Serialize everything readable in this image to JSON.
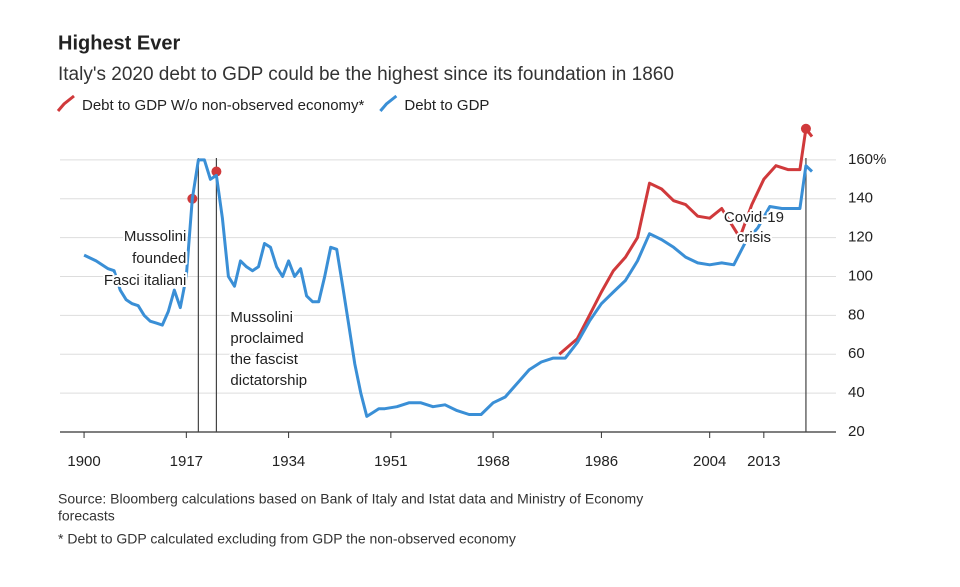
{
  "chart_data": {
    "type": "line",
    "title": "Highest Ever",
    "subtitle": "Italy's 2020 debt to GDP could be the highest since its foundation in 1860",
    "xlim": [
      1896,
      2024
    ],
    "xticks": [
      1900,
      1917,
      1934,
      1951,
      1968,
      1986,
      2004,
      2013
    ],
    "ylim": [
      20,
      180
    ],
    "yticks": [
      20,
      40,
      60,
      80,
      100,
      120,
      140,
      {
        "value": 160,
        "label": "160%"
      }
    ],
    "grid": true,
    "legend": "top-left",
    "series": [
      {
        "name": "Debt to GDP W/o non-observed economy*",
        "color": "#d0393b",
        "x": [
          1918,
          null,
          1922,
          null,
          1979,
          1982,
          1984,
          1986,
          1988,
          1990,
          1992,
          1994,
          1996,
          1998,
          2000,
          2002,
          2004,
          2006,
          2008,
          2009,
          2011,
          2013,
          2015,
          2017,
          2019,
          2020,
          2021
        ],
        "values": [
          140,
          null,
          154,
          null,
          60,
          68,
          80,
          92,
          103,
          110,
          120,
          148,
          145,
          139,
          137,
          131,
          130,
          135,
          125,
          120,
          137,
          150,
          157,
          155,
          155,
          176,
          172
        ]
      },
      {
        "name": "Debt to GDP",
        "color": "#3a8fd6",
        "x": [
          1900,
          1902,
          1904,
          1905,
          1906,
          1907,
          1908,
          1909,
          1910,
          1911,
          1912,
          1913,
          1914,
          1915,
          1916,
          1917,
          1918,
          1919,
          1920,
          1921,
          1922,
          1923,
          1924,
          1925,
          1926,
          1927,
          1928,
          1929,
          1930,
          1931,
          1932,
          1933,
          1934,
          1935,
          1936,
          1937,
          1938,
          1939,
          1940,
          1941,
          1942,
          1943,
          1944,
          1945,
          1946,
          1947,
          1948,
          1949,
          1950,
          1952,
          1954,
          1956,
          1958,
          1960,
          1962,
          1964,
          1966,
          1968,
          1970,
          1972,
          1974,
          1976,
          1978,
          1980,
          1982,
          1984,
          1986,
          1988,
          1990,
          1992,
          1994,
          1996,
          1998,
          2000,
          2002,
          2004,
          2006,
          2008,
          2010,
          2012,
          2014,
          2016,
          2018,
          2019,
          2020,
          2021
        ],
        "values": [
          111,
          108,
          104,
          103,
          93,
          88,
          86,
          85,
          80,
          77,
          76,
          75,
          82,
          93,
          84,
          100,
          140,
          160,
          160,
          150,
          152,
          130,
          100,
          95,
          108,
          105,
          103,
          105,
          117,
          115,
          105,
          100,
          108,
          100,
          104,
          90,
          87,
          87,
          100,
          115,
          114,
          95,
          75,
          55,
          40,
          28,
          30,
          32,
          32,
          33,
          35,
          35,
          33,
          34,
          31,
          29,
          29,
          35,
          38,
          45,
          52,
          56,
          58,
          58,
          66,
          77,
          86,
          92,
          98,
          108,
          122,
          119,
          115,
          110,
          107,
          106,
          107,
          106,
          118,
          125,
          136,
          135,
          135,
          135,
          157,
          154
        ]
      }
    ],
    "annotations": [
      {
        "x": 1919,
        "lines": [
          "Mussolini",
          "founded",
          "Fasci italiani"
        ]
      },
      {
        "x": 1922,
        "lines": [
          "Mussolini",
          "proclaimed",
          "the fascist",
          "dictatorship"
        ]
      },
      {
        "x": 2020,
        "lines": [
          "Covid-19",
          "crisis"
        ]
      }
    ],
    "source": [
      "Source: Bloomberg calculations based on Bank of Italy and Istat data and Ministry of Economy",
      "forecasts"
    ],
    "note": "* Debt to GDP calculated excluding from GDP the non-observed economy"
  }
}
